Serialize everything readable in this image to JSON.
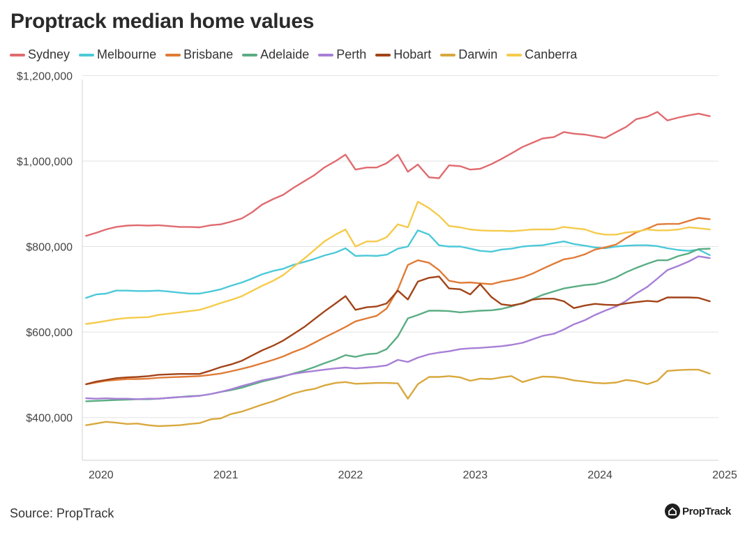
{
  "title": "Proptrack median home values",
  "source": "Source: PropTrack",
  "brand": "PropTrack",
  "brand_icon": "house-logo-icon",
  "chart_data": {
    "type": "line",
    "title": "Proptrack median home values",
    "xlabel": "",
    "ylabel": "",
    "xlim": [
      2019.85,
      2024.95
    ],
    "ylim": [
      300000,
      1230000
    ],
    "x_ticks": [
      2020,
      2021,
      2022,
      2023,
      2024,
      2025
    ],
    "y_ticks": [
      400000,
      600000,
      800000,
      1000000,
      1200000
    ],
    "y_tick_labels": [
      "$400,000",
      "$600,000",
      "$800,000",
      "$1,000,000",
      "$1,200,000"
    ],
    "grid": "horizontal",
    "legend_position": "top",
    "x": [
      2019.88,
      2019.96,
      2020.04,
      2020.12,
      2020.21,
      2020.29,
      2020.38,
      2020.46,
      2020.54,
      2020.63,
      2020.71,
      2020.79,
      2020.88,
      2020.96,
      2021.04,
      2021.13,
      2021.21,
      2021.29,
      2021.38,
      2021.46,
      2021.54,
      2021.63,
      2021.71,
      2021.79,
      2021.88,
      2021.96,
      2022.04,
      2022.13,
      2022.21,
      2022.29,
      2022.38,
      2022.46,
      2022.54,
      2022.63,
      2022.71,
      2022.79,
      2022.88,
      2022.96,
      2023.04,
      2023.13,
      2023.21,
      2023.29,
      2023.38,
      2023.46,
      2023.54,
      2023.63,
      2023.71,
      2023.79,
      2023.88,
      2023.96,
      2024.04,
      2024.13,
      2024.21,
      2024.29,
      2024.38,
      2024.46,
      2024.54,
      2024.63,
      2024.71,
      2024.79,
      2024.88
    ],
    "series": [
      {
        "name": "Sydney",
        "color": "#e06b6f",
        "values": [
          825000,
          832000,
          840000,
          846000,
          849000,
          850000,
          849000,
          850000,
          848000,
          846000,
          846000,
          845000,
          850000,
          852000,
          858000,
          866000,
          880000,
          898000,
          911000,
          921000,
          937000,
          953000,
          967000,
          985000,
          1000000,
          1015000,
          980000,
          985000,
          985000,
          995000,
          1015000,
          975000,
          992000,
          962000,
          960000,
          990000,
          988000,
          980000,
          982000,
          993000,
          1005000,
          1018000,
          1033000,
          1043000,
          1053000,
          1056000,
          1068000,
          1064000,
          1062000,
          1058000,
          1054000,
          1068000,
          1080000,
          1098000,
          1104000,
          1115000,
          1095000,
          1102000,
          1107000,
          1111000,
          1105000
        ]
      },
      {
        "name": "Melbourne",
        "color": "#4cc9d8",
        "values": [
          680000,
          688000,
          690000,
          697000,
          697000,
          696000,
          696000,
          697000,
          695000,
          692000,
          690000,
          690000,
          695000,
          700000,
          708000,
          716000,
          725000,
          735000,
          743000,
          748000,
          757000,
          764000,
          771000,
          779000,
          786000,
          796000,
          778000,
          779000,
          778000,
          781000,
          795000,
          800000,
          838000,
          828000,
          803000,
          800000,
          800000,
          795000,
          790000,
          788000,
          793000,
          795000,
          800000,
          802000,
          803000,
          808000,
          812000,
          806000,
          802000,
          798000,
          796000,
          800000,
          802000,
          803000,
          803000,
          801000,
          796000,
          792000,
          790000,
          793000,
          780000
        ]
      },
      {
        "name": "Brisbane",
        "color": "#e07b36",
        "values": [
          478000,
          482000,
          486000,
          488000,
          490000,
          490000,
          491000,
          493000,
          494000,
          495000,
          496000,
          497000,
          500000,
          503000,
          508000,
          514000,
          520000,
          527000,
          535000,
          543000,
          553000,
          563000,
          575000,
          587000,
          600000,
          612000,
          625000,
          632000,
          638000,
          655000,
          700000,
          757000,
          768000,
          762000,
          745000,
          720000,
          715000,
          716000,
          714000,
          712000,
          718000,
          722000,
          728000,
          737000,
          748000,
          760000,
          770000,
          774000,
          782000,
          793000,
          798000,
          805000,
          820000,
          833000,
          842000,
          852000,
          853000,
          853000,
          860000,
          867000,
          864000
        ]
      },
      {
        "name": "Adelaide",
        "color": "#5aad83",
        "values": [
          438000,
          439000,
          440000,
          441000,
          442000,
          443000,
          443000,
          444000,
          446000,
          448000,
          450000,
          451000,
          455000,
          460000,
          464000,
          470000,
          477000,
          484000,
          490000,
          496000,
          503000,
          510000,
          518000,
          527000,
          536000,
          546000,
          542000,
          548000,
          550000,
          560000,
          590000,
          632000,
          640000,
          650000,
          650000,
          649000,
          646000,
          648000,
          650000,
          651000,
          654000,
          660000,
          668000,
          677000,
          687000,
          695000,
          702000,
          706000,
          710000,
          712000,
          718000,
          728000,
          740000,
          750000,
          760000,
          768000,
          768000,
          778000,
          784000,
          794000,
          795000
        ]
      },
      {
        "name": "Perth",
        "color": "#a77fd6",
        "values": [
          445000,
          444000,
          445000,
          444000,
          444000,
          443000,
          444000,
          444000,
          446000,
          448000,
          449000,
          451000,
          455000,
          460000,
          466000,
          474000,
          480000,
          487000,
          492000,
          497000,
          502000,
          506000,
          509000,
          512000,
          515000,
          517000,
          515000,
          517000,
          519000,
          522000,
          535000,
          530000,
          540000,
          548000,
          552000,
          555000,
          560000,
          562000,
          563000,
          565000,
          567000,
          570000,
          575000,
          583000,
          591000,
          596000,
          606000,
          618000,
          628000,
          640000,
          650000,
          660000,
          673000,
          690000,
          706000,
          725000,
          745000,
          755000,
          765000,
          777000,
          773000
        ]
      },
      {
        "name": "Hobart",
        "color": "#a24418",
        "values": [
          478000,
          484000,
          488000,
          492000,
          494000,
          495000,
          497000,
          500000,
          501000,
          502000,
          502000,
          502000,
          510000,
          518000,
          524000,
          533000,
          545000,
          557000,
          568000,
          580000,
          595000,
          612000,
          630000,
          648000,
          667000,
          684000,
          652000,
          658000,
          660000,
          667000,
          697000,
          676000,
          718000,
          727000,
          730000,
          702000,
          700000,
          688000,
          712000,
          682000,
          665000,
          662000,
          667000,
          676000,
          678000,
          678000,
          672000,
          656000,
          662000,
          666000,
          664000,
          663000,
          667000,
          670000,
          673000,
          671000,
          681000,
          681000,
          681000,
          680000,
          672000
        ]
      },
      {
        "name": "Darwin",
        "color": "#d9a83d",
        "values": [
          382000,
          386000,
          390000,
          388000,
          385000,
          386000,
          382000,
          380000,
          381000,
          382000,
          385000,
          387000,
          396000,
          398000,
          408000,
          414000,
          422000,
          430000,
          438000,
          447000,
          456000,
          463000,
          467000,
          475000,
          481000,
          483000,
          479000,
          480000,
          481000,
          481000,
          480000,
          444000,
          478000,
          495000,
          495000,
          497000,
          494000,
          486000,
          491000,
          490000,
          494000,
          497000,
          483000,
          490000,
          496000,
          495000,
          492000,
          487000,
          484000,
          481000,
          480000,
          482000,
          488000,
          485000,
          478000,
          486000,
          509000,
          511000,
          512000,
          512000,
          503000
        ]
      },
      {
        "name": "Canberra",
        "color": "#f5cb4c",
        "values": [
          619000,
          622000,
          626000,
          630000,
          633000,
          634000,
          635000,
          640000,
          643000,
          646000,
          649000,
          652000,
          660000,
          668000,
          675000,
          684000,
          696000,
          708000,
          720000,
          733000,
          752000,
          772000,
          792000,
          812000,
          828000,
          840000,
          800000,
          812000,
          812000,
          822000,
          852000,
          845000,
          905000,
          890000,
          872000,
          848000,
          845000,
          840000,
          838000,
          837000,
          837000,
          836000,
          838000,
          840000,
          840000,
          840000,
          846000,
          843000,
          840000,
          832000,
          828000,
          828000,
          833000,
          835000,
          840000,
          838000,
          838000,
          840000,
          845000,
          843000,
          840000
        ]
      }
    ]
  }
}
